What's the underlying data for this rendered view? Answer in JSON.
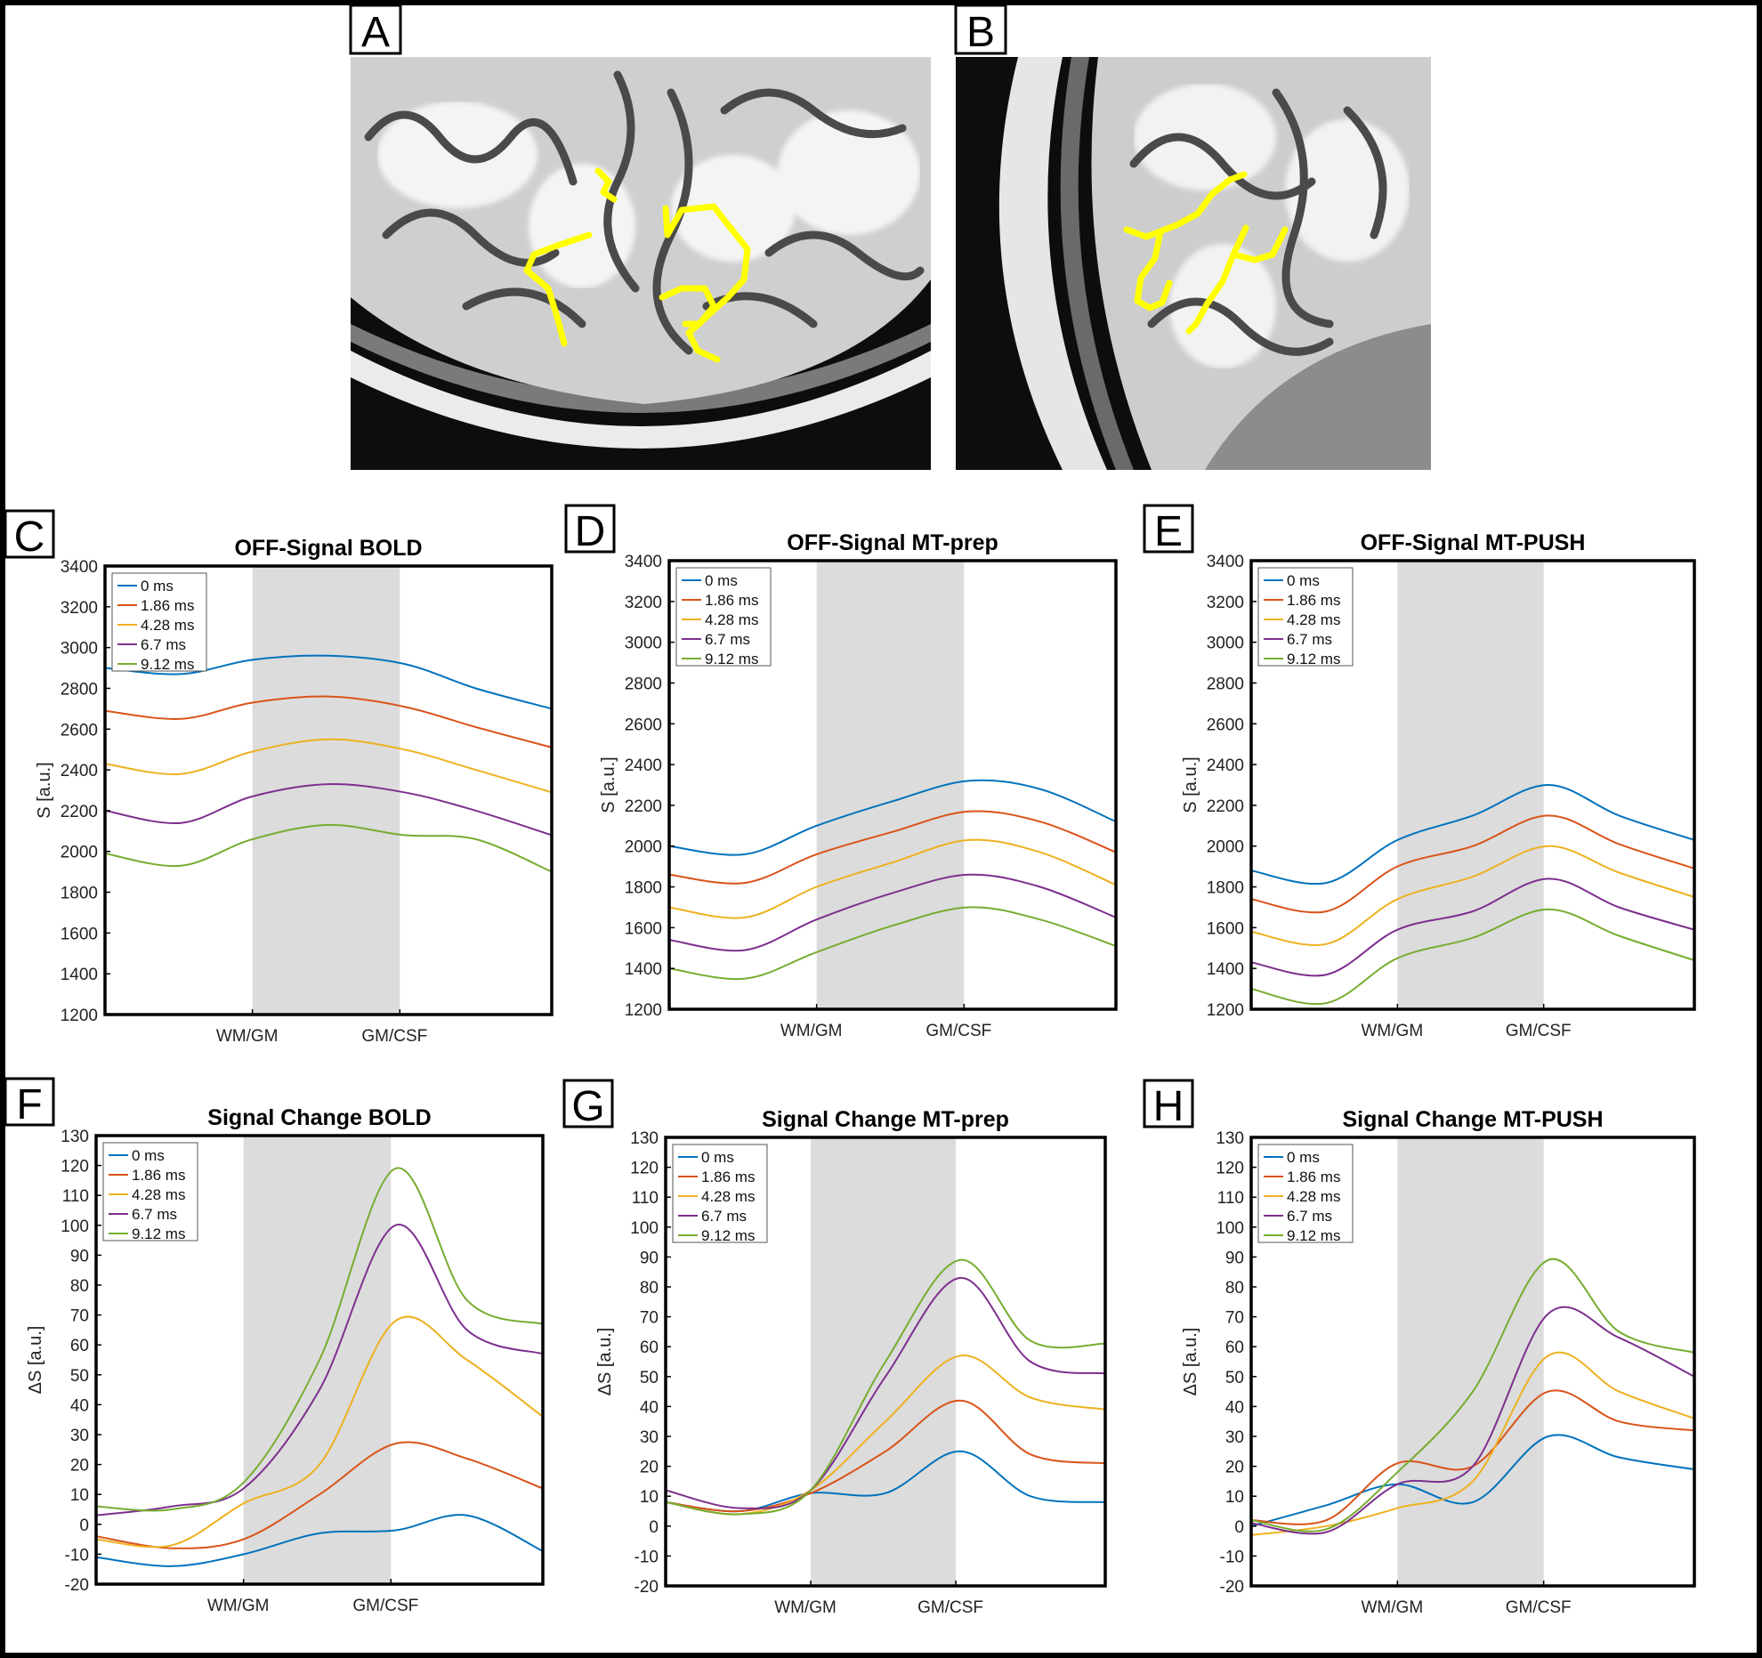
{
  "panel_letters": [
    "A",
    "B",
    "C",
    "D",
    "E",
    "F",
    "G",
    "H"
  ],
  "legend": [
    "0 ms",
    "1.86 ms",
    "4.28 ms",
    "6.7 ms",
    "9.12 ms"
  ],
  "colors": [
    "#0072bd",
    "#d95319",
    "#edb120",
    "#7e2f8e",
    "#77ac30"
  ],
  "chart_data": [
    {
      "panel": "C",
      "type": "line",
      "title": "OFF-Signal BOLD",
      "ylabel": "S [a.u.]",
      "ylim": [
        1200,
        3400
      ],
      "yticks": [
        1200,
        1400,
        1600,
        1800,
        2000,
        2200,
        2400,
        2600,
        2800,
        3000,
        3200,
        3400
      ],
      "xticklabels": [
        "WM/GM",
        "GM/CSF"
      ],
      "x": [
        0,
        0.17,
        0.33,
        0.5,
        0.67,
        0.83,
        1
      ],
      "series": [
        {
          "name": "0 ms",
          "values": [
            2900,
            2870,
            2940,
            2960,
            2920,
            2800,
            2700
          ]
        },
        {
          "name": "1.86 ms",
          "values": [
            2690,
            2650,
            2730,
            2760,
            2710,
            2610,
            2510
          ]
        },
        {
          "name": "4.28 ms",
          "values": [
            2430,
            2380,
            2490,
            2550,
            2500,
            2400,
            2290
          ]
        },
        {
          "name": "6.7 ms",
          "values": [
            2200,
            2140,
            2270,
            2330,
            2290,
            2200,
            2080
          ]
        },
        {
          "name": "9.12 ms",
          "values": [
            1990,
            1930,
            2060,
            2130,
            2080,
            2060,
            1900
          ]
        }
      ]
    },
    {
      "panel": "D",
      "type": "line",
      "title": "OFF-Signal MT-prep",
      "ylabel": "S [a.u.]",
      "ylim": [
        1200,
        3400
      ],
      "yticks": [
        1200,
        1400,
        1600,
        1800,
        2000,
        2200,
        2400,
        2600,
        2800,
        3000,
        3200,
        3400
      ],
      "xticklabels": [
        "WM/GM",
        "GM/CSF"
      ],
      "x": [
        0,
        0.17,
        0.33,
        0.5,
        0.67,
        0.83,
        1
      ],
      "series": [
        {
          "name": "0 ms",
          "values": [
            2000,
            1960,
            2100,
            2220,
            2320,
            2280,
            2120
          ]
        },
        {
          "name": "1.86 ms",
          "values": [
            1860,
            1820,
            1960,
            2070,
            2170,
            2120,
            1970
          ]
        },
        {
          "name": "4.28 ms",
          "values": [
            1700,
            1650,
            1800,
            1920,
            2030,
            1970,
            1810
          ]
        },
        {
          "name": "6.7 ms",
          "values": [
            1540,
            1490,
            1640,
            1770,
            1860,
            1800,
            1650
          ]
        },
        {
          "name": "9.12 ms",
          "values": [
            1400,
            1350,
            1480,
            1610,
            1700,
            1640,
            1510
          ]
        }
      ]
    },
    {
      "panel": "E",
      "type": "line",
      "title": "OFF-Signal MT-PUSH",
      "ylabel": "S [a.u.]",
      "ylim": [
        1200,
        3400
      ],
      "yticks": [
        1200,
        1400,
        1600,
        1800,
        2000,
        2200,
        2400,
        2600,
        2800,
        3000,
        3200,
        3400
      ],
      "xticklabels": [
        "WM/GM",
        "GM/CSF"
      ],
      "x": [
        0,
        0.17,
        0.33,
        0.5,
        0.67,
        0.83,
        1
      ],
      "series": [
        {
          "name": "0 ms",
          "values": [
            1880,
            1820,
            2030,
            2150,
            2300,
            2150,
            2030
          ]
        },
        {
          "name": "1.86 ms",
          "values": [
            1740,
            1680,
            1900,
            2000,
            2150,
            2010,
            1890
          ]
        },
        {
          "name": "4.28 ms",
          "values": [
            1580,
            1520,
            1740,
            1850,
            2000,
            1870,
            1750
          ]
        },
        {
          "name": "6.7 ms",
          "values": [
            1430,
            1370,
            1590,
            1680,
            1840,
            1700,
            1590
          ]
        },
        {
          "name": "9.12 ms",
          "values": [
            1300,
            1230,
            1450,
            1550,
            1690,
            1560,
            1440
          ]
        }
      ]
    },
    {
      "panel": "F",
      "type": "line",
      "title": "Signal Change BOLD",
      "ylabel": "ΔS [a.u.]",
      "ylim": [
        -20,
        130
      ],
      "yticks": [
        -20,
        -10,
        0,
        10,
        20,
        30,
        40,
        50,
        60,
        70,
        80,
        90,
        100,
        110,
        120,
        130
      ],
      "xticklabels": [
        "WM/GM",
        "GM/CSF"
      ],
      "x": [
        0,
        0.17,
        0.33,
        0.5,
        0.67,
        0.83,
        1
      ],
      "series": [
        {
          "name": "0 ms",
          "values": [
            -11,
            -14,
            -10,
            -3,
            -2,
            3,
            -9
          ]
        },
        {
          "name": "1.86 ms",
          "values": [
            -4,
            -8,
            -5,
            10,
            27,
            22,
            12
          ]
        },
        {
          "name": "4.28 ms",
          "values": [
            -5,
            -7,
            7,
            20,
            68,
            55,
            36
          ]
        },
        {
          "name": "6.7 ms",
          "values": [
            3,
            6,
            12,
            45,
            100,
            65,
            57
          ]
        },
        {
          "name": "9.12 ms",
          "values": [
            6,
            5,
            14,
            55,
            119,
            75,
            67
          ]
        }
      ]
    },
    {
      "panel": "G",
      "type": "line",
      "title": "Signal Change MT-prep",
      "ylabel": "ΔS [a.u.]",
      "ylim": [
        -20,
        130
      ],
      "yticks": [
        -20,
        -10,
        0,
        10,
        20,
        30,
        40,
        50,
        60,
        70,
        80,
        90,
        100,
        110,
        120,
        130
      ],
      "xticklabels": [
        "WM/GM",
        "GM/CSF"
      ],
      "x": [
        0,
        0.17,
        0.33,
        0.5,
        0.67,
        0.83,
        1
      ],
      "series": [
        {
          "name": "0 ms",
          "values": [
            8,
            5,
            11,
            11,
            25,
            10,
            8
          ]
        },
        {
          "name": "1.86 ms",
          "values": [
            8,
            5,
            11,
            25,
            42,
            24,
            21
          ]
        },
        {
          "name": "4.28 ms",
          "values": [
            8,
            4,
            12,
            35,
            57,
            43,
            39
          ]
        },
        {
          "name": "6.7 ms",
          "values": [
            12,
            6,
            12,
            50,
            83,
            55,
            51
          ]
        },
        {
          "name": "9.12 ms",
          "values": [
            8,
            4,
            12,
            55,
            89,
            62,
            61
          ]
        }
      ]
    },
    {
      "panel": "H",
      "type": "line",
      "title": "Signal Change MT-PUSH",
      "ylabel": "ΔS [a.u.]",
      "ylim": [
        -20,
        130
      ],
      "yticks": [
        -20,
        -10,
        0,
        10,
        20,
        30,
        40,
        50,
        60,
        70,
        80,
        90,
        100,
        110,
        120,
        130
      ],
      "xticklabels": [
        "WM/GM",
        "GM/CSF"
      ],
      "x": [
        0,
        0.17,
        0.33,
        0.5,
        0.67,
        0.83,
        1
      ],
      "series": [
        {
          "name": "0 ms",
          "values": [
            0,
            7,
            14,
            8,
            30,
            23,
            19
          ]
        },
        {
          "name": "1.86 ms",
          "values": [
            2,
            2,
            21,
            20,
            45,
            35,
            32
          ]
        },
        {
          "name": "4.28 ms",
          "values": [
            -3,
            0,
            6,
            15,
            57,
            45,
            36
          ]
        },
        {
          "name": "6.7 ms",
          "values": [
            1,
            -2,
            14,
            20,
            71,
            63,
            50
          ]
        },
        {
          "name": "9.12 ms",
          "values": [
            2,
            -1,
            18,
            45,
            89,
            65,
            58
          ]
        }
      ]
    }
  ]
}
